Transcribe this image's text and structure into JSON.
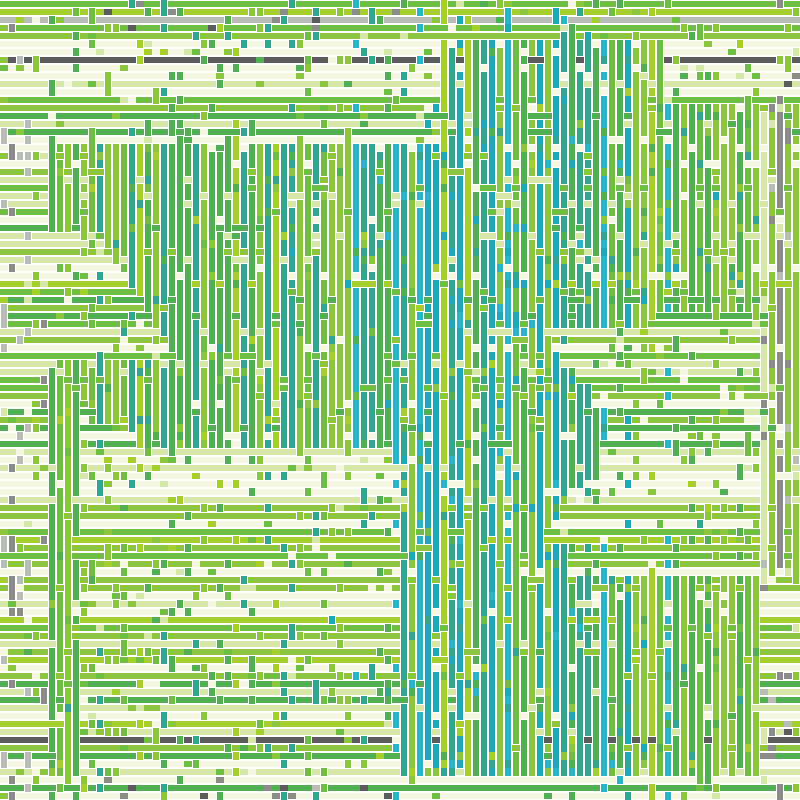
{
  "artwork": {
    "kind": "woven-pattern",
    "palette": {
      "lime": "#8cc63f",
      "yellow_green": "#a5cf2c",
      "bright_green": "#6fbe44",
      "green": "#4fae52",
      "teal_green": "#34a68f",
      "teal": "#1ea7b6",
      "cyan": "#2ab4c8",
      "light_cyan": "#8fd6e0",
      "pale_green": "#d6e9a8",
      "cream": "#f4f6e2",
      "light_gray": "#b9bdb8",
      "gray": "#8a8d8a",
      "dark_gray": "#5a5d5b",
      "gap": "#ffffff"
    },
    "thread_count": 100,
    "weave": "over-under"
  }
}
